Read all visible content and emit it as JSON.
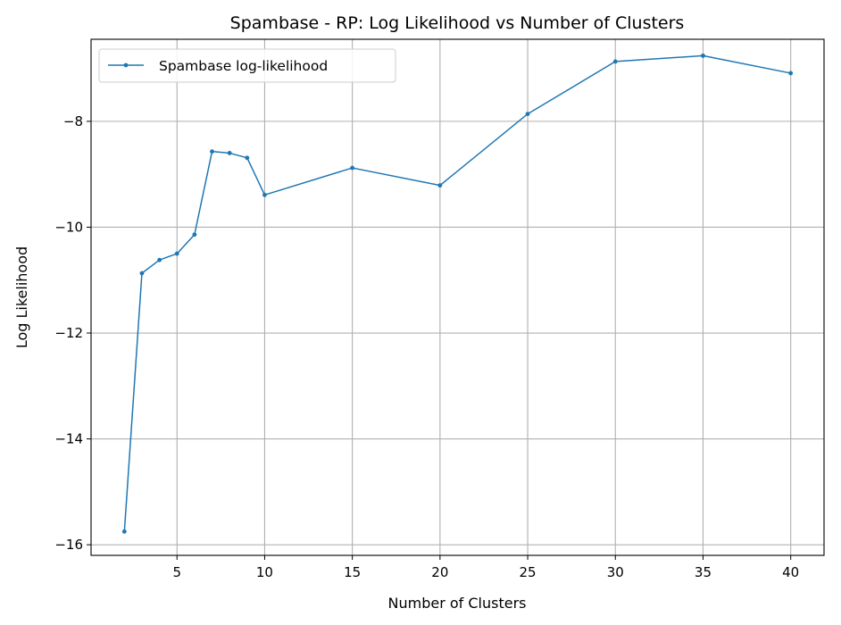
{
  "chart_data": {
    "type": "line",
    "title": "Spambase - RP: Log Likelihood vs Number of Clusters",
    "xlabel": "Number of Clusters",
    "ylabel": "Log Likelihood",
    "xlim": [
      0.1,
      41.9
    ],
    "ylim": [
      -16.2,
      -6.45
    ],
    "xticks": [
      5,
      10,
      15,
      20,
      25,
      30,
      35,
      40
    ],
    "yticks": [
      -16,
      -14,
      -12,
      -10,
      -8
    ],
    "grid": true,
    "legend_position": "top-left",
    "series": [
      {
        "name": "Spambase log-likelihood",
        "color": "#1f77b4",
        "x": [
          2,
          3,
          4,
          5,
          6,
          7,
          8,
          9,
          10,
          15,
          20,
          25,
          30,
          35,
          40
        ],
        "y": [
          -15.75,
          -10.87,
          -10.62,
          -10.5,
          -10.14,
          -8.57,
          -8.6,
          -8.69,
          -9.39,
          -8.88,
          -9.21,
          -7.86,
          -6.87,
          -6.76,
          -7.09
        ]
      }
    ]
  }
}
